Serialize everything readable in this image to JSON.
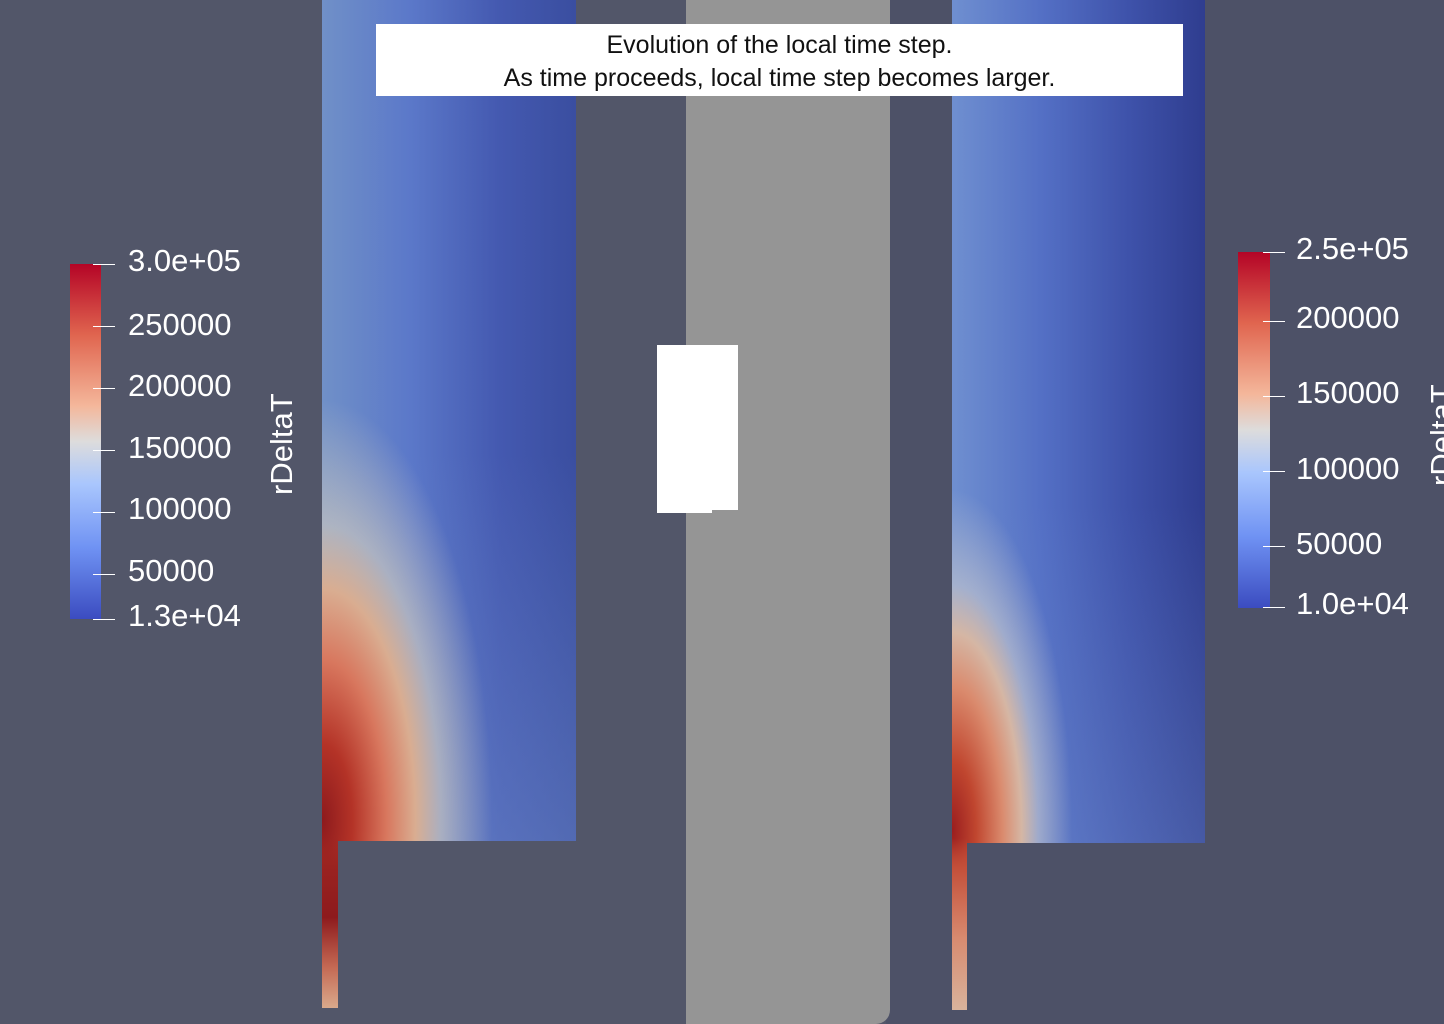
{
  "annotation": {
    "line1": "Evolution of the local time step.",
    "line2": "As time proceeds, local time step becomes larger."
  },
  "legend_left": {
    "title": "rDeltaT",
    "labels": [
      "3.0e+05",
      "250000",
      "200000",
      "150000",
      "100000",
      "50000",
      "1.3e+04"
    ],
    "range": [
      13000,
      300000
    ]
  },
  "legend_right": {
    "title": "rDeltaT",
    "labels": [
      "2.5e+05",
      "200000",
      "150000",
      "100000",
      "50000",
      "1.0e+04"
    ],
    "range": [
      10000,
      250000
    ]
  },
  "colormap": [
    "#3b4cc0",
    "#6f92f3",
    "#a9c6fd",
    "#dddcdc",
    "#f4b79b",
    "#e0654f",
    "#b40426"
  ],
  "colors": {
    "background": "#525669",
    "center_pane": "#959595",
    "annotation_bg": "#ffffff"
  }
}
